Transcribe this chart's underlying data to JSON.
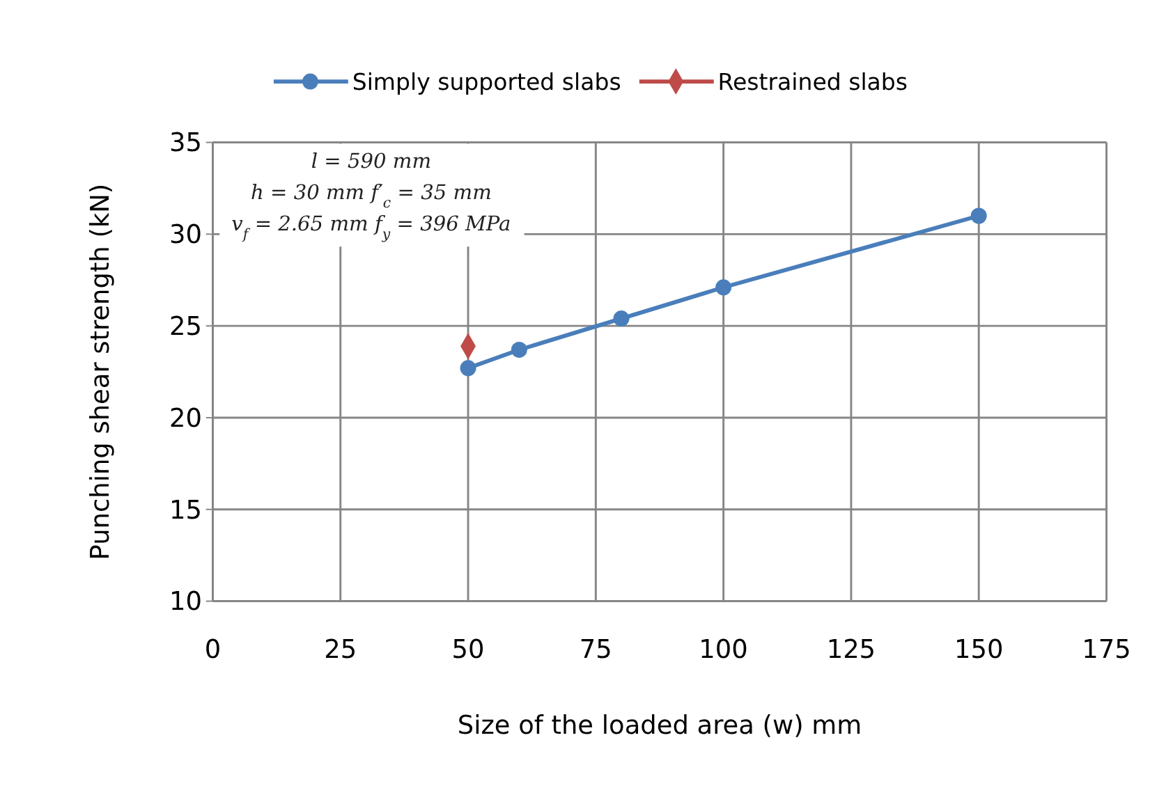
{
  "chart_data": {
    "type": "line",
    "xlabel": "Size of the loaded area (w) mm",
    "ylabel": "Punching shear strength (kN)",
    "xlim": [
      0,
      175
    ],
    "xticks": [
      0,
      25,
      50,
      75,
      100,
      125,
      150,
      175
    ],
    "ylim": [
      10,
      35
    ],
    "yticks": [
      10,
      15,
      20,
      25,
      30,
      35
    ],
    "grid": true,
    "legend": "top",
    "marker": "circle",
    "series": [
      {
        "name": "Simply supported slabs",
        "color": "#4a7ebb",
        "x": [
          50,
          60,
          80,
          100,
          150
        ],
        "values": [
          22.7,
          23.7,
          25.4,
          27.1,
          31.0
        ]
      },
      {
        "name": "Restrained slabs",
        "type": "scatter",
        "marker": "diamond",
        "color": "#be4b48",
        "x": [
          50
        ],
        "values": [
          23.9
        ]
      }
    ],
    "annotations": [
      "l = 590 mm",
      "h = 30 mm f′$_{c}$ = 35 mm",
      "v$_{f}$ = 2.65 mm f$_{y}$ = 396 MPa"
    ]
  }
}
